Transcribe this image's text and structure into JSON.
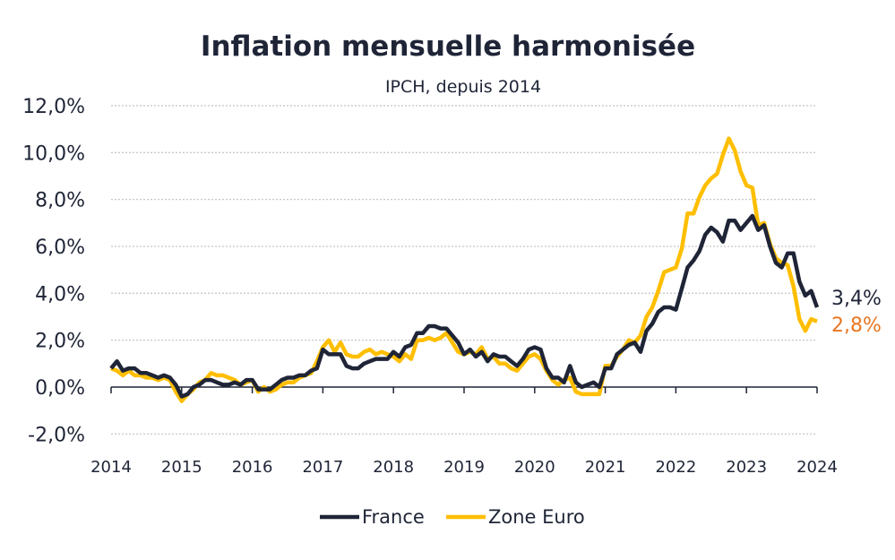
{
  "chart_data": {
    "type": "line",
    "title": "Inflation mensuelle harmonisée",
    "subtitle": "IPCH, depuis 2014",
    "xlabel": "",
    "ylabel": "",
    "ylim": [
      -2,
      12
    ],
    "xlim": [
      "2014-01",
      "2024-01"
    ],
    "y_ticks": [
      "-2,0%",
      "0,0%",
      "2,0%",
      "4,0%",
      "6,0%",
      "8,0%",
      "10,0%",
      "12,0%"
    ],
    "y_tick_values": [
      -2,
      0,
      2,
      4,
      6,
      8,
      10,
      12
    ],
    "x_ticks": [
      "2014",
      "2015",
      "2016",
      "2017",
      "2018",
      "2019",
      "2020",
      "2021",
      "2022",
      "2023",
      "2024"
    ],
    "grid": "horizontal dotted",
    "legend": "bottom",
    "x_start": "2014-01",
    "x_frequency": "monthly",
    "series": [
      {
        "name": "France",
        "color": "#1F2537",
        "end_label": "3,4%",
        "end_label_color": "#1F2537",
        "values": [
          0.8,
          1.1,
          0.7,
          0.8,
          0.8,
          0.6,
          0.6,
          0.5,
          0.4,
          0.5,
          0.4,
          0.1,
          -0.4,
          -0.3,
          0.0,
          0.1,
          0.3,
          0.3,
          0.2,
          0.1,
          0.1,
          0.2,
          0.1,
          0.3,
          0.3,
          -0.1,
          -0.1,
          -0.1,
          0.1,
          0.3,
          0.4,
          0.4,
          0.5,
          0.5,
          0.7,
          0.8,
          1.6,
          1.4,
          1.4,
          1.4,
          0.9,
          0.8,
          0.8,
          1.0,
          1.1,
          1.2,
          1.2,
          1.2,
          1.5,
          1.3,
          1.7,
          1.8,
          2.3,
          2.3,
          2.6,
          2.6,
          2.5,
          2.5,
          2.2,
          1.9,
          1.4,
          1.6,
          1.3,
          1.5,
          1.1,
          1.4,
          1.3,
          1.3,
          1.1,
          0.9,
          1.2,
          1.6,
          1.7,
          1.6,
          0.8,
          0.4,
          0.4,
          0.2,
          0.9,
          0.2,
          0.0,
          0.1,
          0.2,
          0.0,
          0.8,
          0.8,
          1.4,
          1.6,
          1.8,
          1.9,
          1.5,
          2.4,
          2.7,
          3.2,
          3.4,
          3.4,
          3.3,
          4.2,
          5.1,
          5.4,
          5.8,
          6.5,
          6.8,
          6.6,
          6.2,
          7.1,
          7.1,
          6.7,
          7.0,
          7.3,
          6.7,
          6.9,
          6.0,
          5.3,
          5.1,
          5.7,
          5.7,
          4.5,
          3.9,
          4.1,
          3.4
        ]
      },
      {
        "name": "Zone Euro",
        "color": "#FFBE00",
        "end_label": "2,8%",
        "end_label_color": "#E87722",
        "values": [
          0.8,
          0.7,
          0.5,
          0.7,
          0.5,
          0.5,
          0.4,
          0.4,
          0.3,
          0.4,
          0.3,
          -0.2,
          -0.6,
          -0.3,
          -0.1,
          0.2,
          0.3,
          0.6,
          0.5,
          0.5,
          0.4,
          0.3,
          0.1,
          0.2,
          0.3,
          -0.2,
          0.0,
          -0.2,
          -0.1,
          0.1,
          0.2,
          0.2,
          0.4,
          0.5,
          0.6,
          1.1,
          1.7,
          2.0,
          1.5,
          1.9,
          1.4,
          1.3,
          1.3,
          1.5,
          1.6,
          1.4,
          1.5,
          1.4,
          1.3,
          1.1,
          1.4,
          1.2,
          2.0,
          2.0,
          2.1,
          2.0,
          2.1,
          2.3,
          1.9,
          1.5,
          1.4,
          1.5,
          1.4,
          1.7,
          1.2,
          1.3,
          1.0,
          1.0,
          0.8,
          0.7,
          1.0,
          1.3,
          1.4,
          1.2,
          0.7,
          0.3,
          0.1,
          0.3,
          0.4,
          -0.2,
          -0.3,
          -0.3,
          -0.3,
          -0.3,
          0.9,
          0.9,
          1.3,
          1.6,
          2.0,
          1.9,
          2.2,
          3.0,
          3.4,
          4.1,
          4.9,
          5.0,
          5.1,
          5.9,
          7.4,
          7.4,
          8.1,
          8.6,
          8.9,
          9.1,
          9.9,
          10.6,
          10.1,
          9.2,
          8.6,
          8.5,
          6.9,
          7.0,
          6.1,
          5.5,
          5.3,
          5.2,
          4.3,
          2.9,
          2.4,
          2.9,
          2.8
        ]
      }
    ]
  }
}
